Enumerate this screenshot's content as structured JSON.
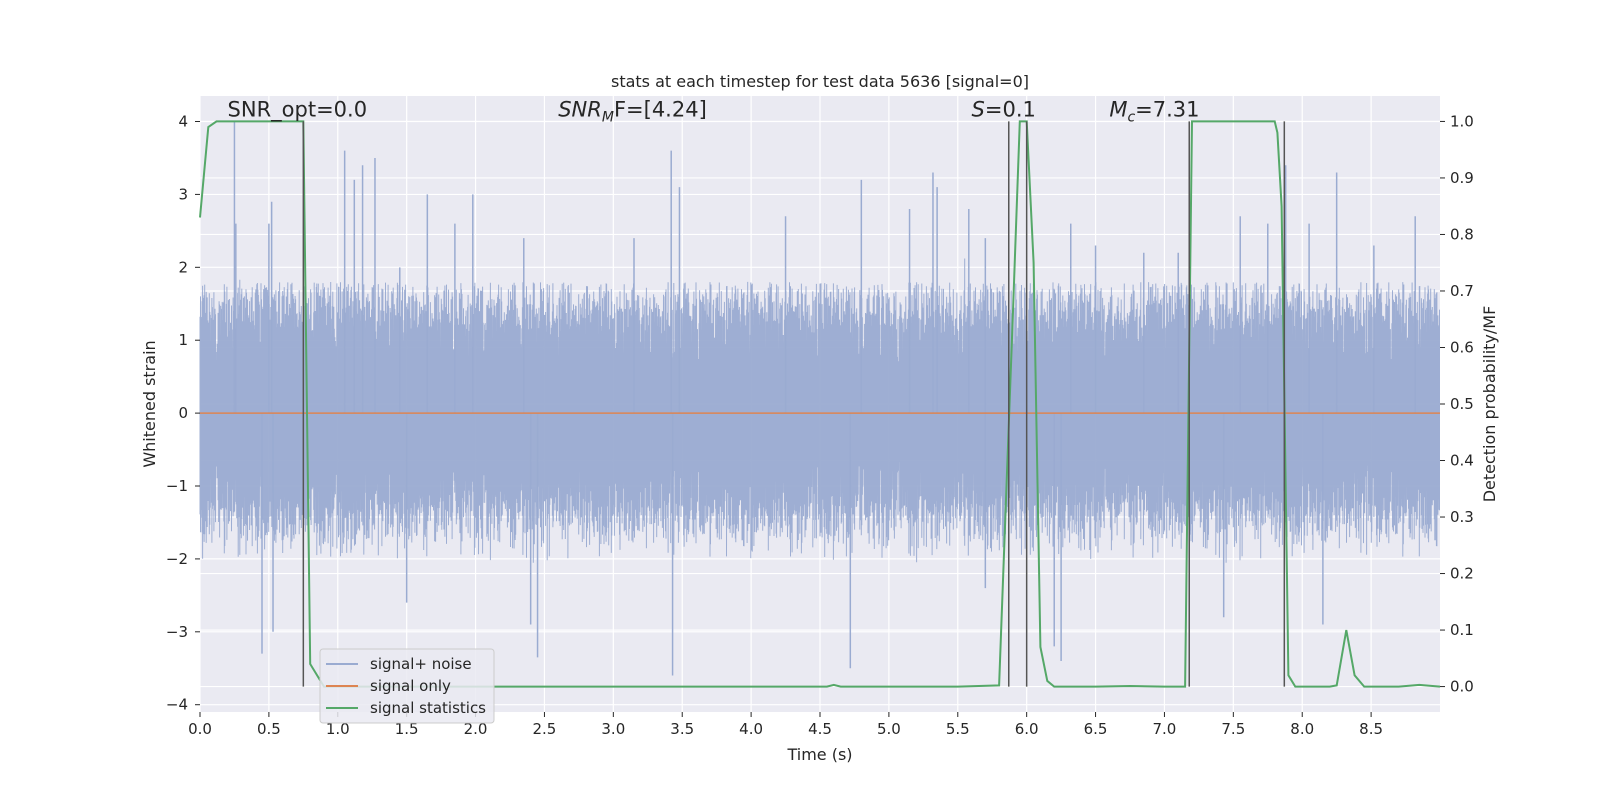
{
  "chart_data": {
    "type": "line",
    "title": "stats at each timestep for test data 5636 [signal=0]",
    "xlabel": "Time (s)",
    "ylabel": "Whitened strain",
    "y2label": "Detection probability/MF",
    "xlim": [
      0.0,
      9.0
    ],
    "ylim": [
      -4.1,
      4.35
    ],
    "y2lim": [
      -0.045,
      1.045
    ],
    "xticks": [
      0.0,
      0.5,
      1.0,
      1.5,
      2.0,
      2.5,
      3.0,
      3.5,
      4.0,
      4.5,
      5.0,
      5.5,
      6.0,
      6.5,
      7.0,
      7.5,
      8.0,
      8.5
    ],
    "xtick_labels": [
      "0.0",
      "0.5",
      "1.0",
      "1.5",
      "2.0",
      "2.5",
      "3.0",
      "3.5",
      "4.0",
      "4.5",
      "5.0",
      "5.5",
      "6.0",
      "6.5",
      "7.0",
      "7.5",
      "8.0",
      "8.5"
    ],
    "yticks": [
      4,
      3,
      2,
      1,
      0,
      -1,
      -2,
      -3,
      -4
    ],
    "ytick_labels": [
      "4",
      "3",
      "2",
      "1",
      "0",
      "−1",
      "−2",
      "−3",
      "−4"
    ],
    "y2ticks": [
      1.0,
      0.9,
      0.8,
      0.7,
      0.6,
      0.5,
      0.4,
      0.3,
      0.2,
      0.1,
      0.0
    ],
    "y2tick_labels": [
      "1.0",
      "0.9",
      "0.8",
      "0.7",
      "0.6",
      "0.5",
      "0.4",
      "0.3",
      "0.2",
      "0.1",
      "0.0"
    ],
    "grid": true,
    "legend_position": "lower-left",
    "annotations": [
      {
        "text": "SNR_opt=0.0",
        "x": 0.2,
        "y": 4.07,
        "italic_prefix": ""
      },
      {
        "text": "SNR",
        "sub": "M",
        "rest": "F=[4.24]",
        "x": 2.6,
        "y": 4.07
      },
      {
        "text": "S",
        "rest": "=0.1",
        "x": 5.6,
        "y": 4.07
      },
      {
        "text": "M",
        "sub": "c",
        "rest": "=7.31",
        "x": 6.6,
        "y": 4.07
      }
    ],
    "vertical_lines": [
      0.75,
      5.87,
      6.0,
      7.18,
      7.87
    ],
    "series": [
      {
        "name": "signal+ noise",
        "axis": "left",
        "color": "#9aabd1",
        "description": "whitened noise, dense",
        "envelope_typical": [
          -1.6,
          1.65
        ],
        "spike_peaks": [
          [
            0.25,
            4.0
          ],
          [
            0.26,
            2.6
          ],
          [
            0.5,
            2.6
          ],
          [
            0.52,
            2.9
          ],
          [
            0.45,
            -3.3
          ],
          [
            0.53,
            -3.0
          ],
          [
            1.05,
            3.6
          ],
          [
            1.12,
            3.2
          ],
          [
            1.18,
            3.4
          ],
          [
            1.27,
            3.5
          ],
          [
            1.45,
            2.0
          ],
          [
            1.5,
            -2.6
          ],
          [
            1.65,
            3.0
          ],
          [
            1.85,
            2.6
          ],
          [
            1.98,
            3.0
          ],
          [
            2.35,
            2.4
          ],
          [
            2.4,
            -2.9
          ],
          [
            2.45,
            -3.35
          ],
          [
            3.15,
            2.4
          ],
          [
            3.42,
            3.6
          ],
          [
            3.48,
            3.1
          ],
          [
            3.43,
            -3.6
          ],
          [
            4.25,
            2.7
          ],
          [
            4.8,
            3.2
          ],
          [
            4.72,
            -3.5
          ],
          [
            5.15,
            2.8
          ],
          [
            5.32,
            3.3
          ],
          [
            5.35,
            3.1
          ],
          [
            5.58,
            2.8
          ],
          [
            5.7,
            2.4
          ],
          [
            5.7,
            -2.4
          ],
          [
            6.2,
            -3.2
          ],
          [
            6.25,
            -3.4
          ],
          [
            6.32,
            2.6
          ],
          [
            6.5,
            2.3
          ],
          [
            6.85,
            2.2
          ],
          [
            7.1,
            2.2
          ],
          [
            7.43,
            -2.8
          ],
          [
            7.55,
            2.7
          ],
          [
            7.75,
            2.6
          ],
          [
            7.88,
            3.4
          ],
          [
            8.05,
            2.6
          ],
          [
            8.15,
            -2.9
          ],
          [
            8.25,
            3.3
          ],
          [
            8.52,
            2.3
          ],
          [
            8.82,
            2.7
          ]
        ]
      },
      {
        "name": "signal only",
        "axis": "left",
        "color": "#dd8452",
        "x": [
          0.0,
          9.0
        ],
        "y": [
          0.0,
          0.0
        ]
      },
      {
        "name": "signal statistics",
        "axis": "right",
        "color": "#55a868",
        "x": [
          0.0,
          0.06,
          0.12,
          0.2,
          0.72,
          0.75,
          0.8,
          0.9,
          1.0,
          2.0,
          3.0,
          4.0,
          4.55,
          4.6,
          4.65,
          5.0,
          5.5,
          5.8,
          5.9,
          5.95,
          6.0,
          6.05,
          6.1,
          6.15,
          6.2,
          6.25,
          6.5,
          6.75,
          7.0,
          7.15,
          7.2,
          7.25,
          7.3,
          7.8,
          7.82,
          7.85,
          7.9,
          7.95,
          8.0,
          8.1,
          8.2,
          8.25,
          8.32,
          8.38,
          8.45,
          8.5,
          8.7,
          8.85,
          9.0
        ],
        "y": [
          0.83,
          0.99,
          1.0,
          1.0,
          1.0,
          1.0,
          0.04,
          0.0,
          0.0,
          0.0,
          0.0,
          0.0,
          0.0,
          0.003,
          0.0,
          0.0,
          0.0,
          0.002,
          0.66,
          1.0,
          1.0,
          0.75,
          0.07,
          0.01,
          0.0,
          0.0,
          0.0,
          0.001,
          0.0,
          0.0,
          1.0,
          1.0,
          1.0,
          1.0,
          0.98,
          0.85,
          0.02,
          0.0,
          0.0,
          0.0,
          0.0,
          0.002,
          0.1,
          0.02,
          0.0,
          0.0,
          0.0,
          0.003,
          0.0
        ]
      }
    ]
  }
}
